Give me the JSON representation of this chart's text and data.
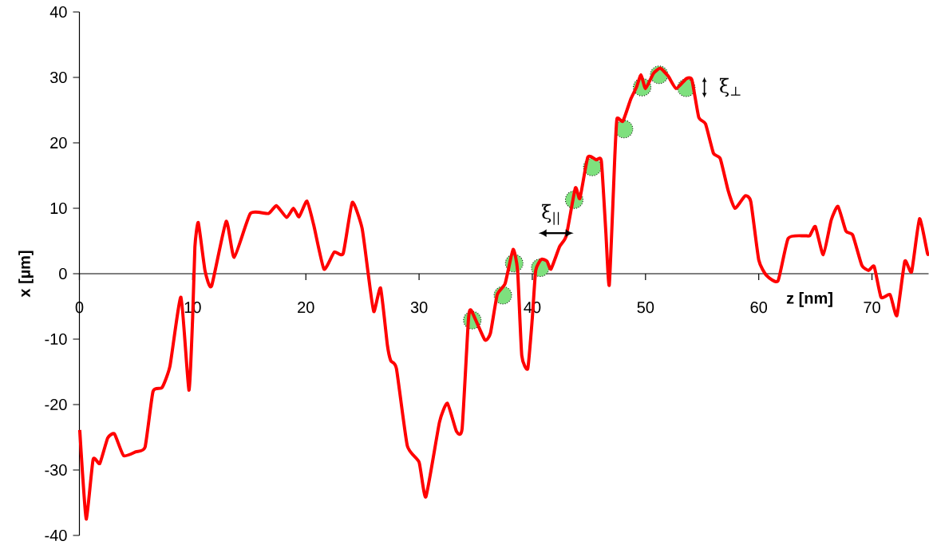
{
  "chart_data": {
    "type": "line",
    "xlabel": "**z [nm]**",
    "ylabel": "**x [µm]**",
    "xlim": [
      0,
      75
    ],
    "ylim": [
      -40,
      40
    ],
    "xticks": [
      0,
      10,
      20,
      30,
      40,
      50,
      60,
      70
    ],
    "yticks": [
      -40,
      -30,
      -20,
      -10,
      0,
      10,
      20,
      30,
      40
    ],
    "series": [
      {
        "type": "scatter",
        "color": "#7ee07e",
        "marker": "circle",
        "x": [
          34.7,
          37.4,
          38.4,
          40.7,
          43.7,
          45.3,
          48.1,
          49.7,
          51.2,
          53.6
        ],
        "values": [
          -7.1,
          -3.3,
          1.6,
          0.9,
          11.3,
          16.3,
          22.1,
          28.5,
          30.4,
          28.4
        ]
      },
      {
        "color": "#ff0000",
        "marker": "none",
        "x": [
          0.03,
          0.27,
          0.62,
          1.21,
          1.8,
          2.5,
          3.1,
          3.9,
          5.0,
          5.8,
          6.5,
          7.3,
          8.0,
          8.97,
          9.67,
          10.0,
          10.2,
          10.5,
          11.1,
          11.67,
          12.96,
          13.67,
          15.1,
          16.7,
          17.4,
          18.3,
          18.9,
          19.4,
          20.1,
          20.7,
          21.6,
          22.5,
          23.3,
          24.1,
          24.96,
          25.5,
          26.0,
          26.6,
          27.2,
          27.5,
          28.0,
          28.96,
          30.0,
          30.6,
          31.8,
          32.5,
          33.3,
          33.8,
          34.35,
          34.6,
          35.8,
          36.3,
          36.9,
          37.6,
          38.3,
          38.7,
          39.07,
          39.6,
          40.0,
          40.3,
          40.8,
          41.3,
          41.65,
          42.4,
          43.0,
          43.8,
          44.2,
          44.9,
          45.65,
          46.1,
          46.5,
          46.8,
          47.3,
          47.48,
          48.0,
          48.7,
          49.2,
          49.6,
          50.0,
          50.7,
          51.3,
          52.0,
          52.7,
          53.6,
          54.1,
          54.7,
          55.3,
          56.0,
          56.6,
          57.3,
          57.9,
          58.8,
          59.3,
          60.0,
          60.7,
          61.7,
          62.6,
          64.0,
          64.5,
          65.0,
          65.7,
          66.4,
          67.0,
          67.7,
          68.3,
          69.1,
          69.7,
          70.2,
          70.8,
          71.6,
          72.2,
          72.9,
          73.5,
          74.2,
          74.9,
          75.0
        ],
        "values": [
          -23.9,
          -30.4,
          -37.5,
          -28.4,
          -29,
          -25.1,
          -24.5,
          -27.8,
          -27.2,
          -26.5,
          -18,
          -17.4,
          -14.1,
          -3.6,
          -17.8,
          -6.8,
          4.1,
          7.8,
          0.4,
          -1.9,
          8.0,
          2.5,
          9.2,
          9.2,
          10.4,
          8.6,
          10,
          8.7,
          11.1,
          7.4,
          0.7,
          3.3,
          3.1,
          10.9,
          7.0,
          0.1,
          -5.8,
          -2.2,
          -10.9,
          -13.3,
          -14.5,
          -26.3,
          -28.8,
          -34.1,
          -22.7,
          -19.8,
          -24.1,
          -23.7,
          -7.2,
          -5.6,
          -10.1,
          -9.1,
          -3.2,
          -1.5,
          3.7,
          0.5,
          -12.5,
          -14.5,
          -6.8,
          0.5,
          2.2,
          1.9,
          0.7,
          4.1,
          5.8,
          13.1,
          11.5,
          17.8,
          17.4,
          17.2,
          6.2,
          -1.7,
          18.4,
          23.7,
          23.3,
          26.7,
          28.5,
          30.4,
          28.3,
          30.6,
          31.4,
          30.2,
          28.3,
          29.8,
          29.6,
          23.9,
          22.9,
          18.4,
          17.6,
          12.7,
          10.0,
          11.9,
          11.0,
          2.1,
          -0.3,
          -1.1,
          5.4,
          5.8,
          5.8,
          7.2,
          2.9,
          8.2,
          10.3,
          6.5,
          5.9,
          1.3,
          0.5,
          1.1,
          -3.6,
          -3.2,
          -6.4,
          1.9,
          0.3,
          8.4,
          3.1,
          3.2
        ]
      }
    ],
    "annotations": [
      "ξ$_{||}$",
      "ξ$_{⊥}$"
    ]
  }
}
